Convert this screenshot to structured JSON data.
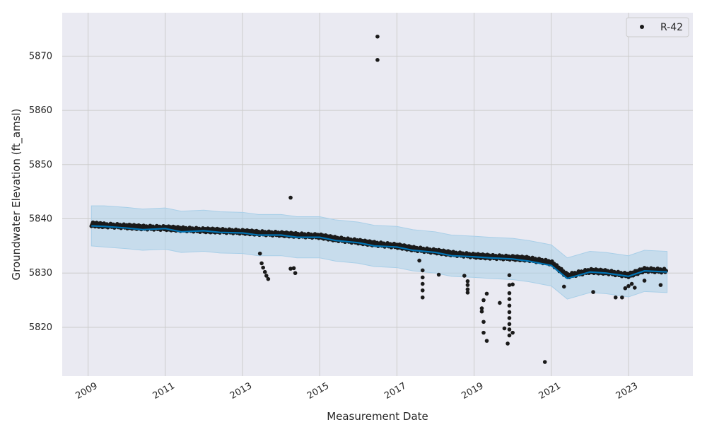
{
  "chart_data": {
    "type": "scatter",
    "title": "",
    "xlabel": "Measurement Date",
    "ylabel": "Groundwater Elevation (ft_amsl)",
    "x_ticks": [
      "2009",
      "2011",
      "2013",
      "2015",
      "2017",
      "2019",
      "2021",
      "2023"
    ],
    "y_ticks": [
      5820,
      5830,
      5840,
      5850,
      5860,
      5870
    ],
    "xlim": [
      "2008-05-01",
      "2024-09-01"
    ],
    "ylim": [
      5811,
      5878
    ],
    "grid": true,
    "legend": {
      "position": "top-right",
      "entries": [
        "R-42"
      ]
    },
    "colors": {
      "background": "#eaeaf2",
      "grid": "#cccccc",
      "observed": "#1a1a1a",
      "forecast_line": "#0072b2",
      "uncertainty_band": "#a9cfe8"
    },
    "series": [
      {
        "name": "R-42",
        "kind": "observed_points",
        "trend": {
          "x": [
            "2009-02-01",
            "2009-06-01",
            "2010-01-01",
            "2010-06-01",
            "2011-01-01",
            "2011-06-01",
            "2012-01-01",
            "2012-06-01",
            "2013-01-01",
            "2013-06-01",
            "2014-01-01",
            "2014-06-01",
            "2015-01-01",
            "2015-06-01",
            "2016-01-01",
            "2016-06-01",
            "2017-01-01",
            "2017-06-01",
            "2018-01-01",
            "2018-06-01",
            "2019-01-01",
            "2019-06-01",
            "2020-01-01",
            "2020-06-01",
            "2021-01-01",
            "2021-06-01",
            "2022-01-01",
            "2022-06-01",
            "2023-01-01",
            "2023-06-01",
            "2024-01-01"
          ],
          "y": [
            5839.0,
            5838.8,
            5838.6,
            5838.4,
            5838.3,
            5838.1,
            5837.9,
            5837.8,
            5837.6,
            5837.4,
            5837.2,
            5837.0,
            5836.8,
            5836.3,
            5835.8,
            5835.4,
            5835.0,
            5834.5,
            5834.0,
            5833.6,
            5833.2,
            5833.0,
            5832.8,
            5832.6,
            5831.9,
            5829.5,
            5830.4,
            5830.2,
            5829.6,
            5830.6,
            5830.4
          ]
        },
        "outliers": [
          [
            "2016-07-01",
            5873.6
          ],
          [
            "2016-07-01",
            5869.3
          ],
          [
            "2014-04-01",
            5843.9
          ],
          [
            "2013-06-15",
            5833.6
          ],
          [
            "2013-07-01",
            5831.8
          ],
          [
            "2013-07-15",
            5831.0
          ],
          [
            "2013-08-01",
            5830.2
          ],
          [
            "2013-08-15",
            5829.5
          ],
          [
            "2013-09-01",
            5828.9
          ],
          [
            "2014-04-01",
            5830.8
          ],
          [
            "2014-05-01",
            5830.9
          ],
          [
            "2014-05-15",
            5830.0
          ],
          [
            "2017-08-01",
            5832.3
          ],
          [
            "2017-09-01",
            5830.5
          ],
          [
            "2017-09-01",
            5829.2
          ],
          [
            "2017-09-01",
            5828.0
          ],
          [
            "2017-09-01",
            5826.8
          ],
          [
            "2017-09-01",
            5825.5
          ],
          [
            "2018-02-01",
            5829.7
          ],
          [
            "2018-10-01",
            5829.5
          ],
          [
            "2018-11-01",
            5828.5
          ],
          [
            "2018-11-01",
            5827.8
          ],
          [
            "2018-11-01",
            5827.0
          ],
          [
            "2018-11-01",
            5826.4
          ],
          [
            "2019-03-15",
            5823.5
          ],
          [
            "2019-03-15",
            5822.9
          ],
          [
            "2019-04-01",
            5825.0
          ],
          [
            "2019-04-01",
            5821.0
          ],
          [
            "2019-04-01",
            5819.0
          ],
          [
            "2019-05-01",
            5817.5
          ],
          [
            "2019-05-01",
            5826.2
          ],
          [
            "2019-09-01",
            5824.5
          ],
          [
            "2019-10-15",
            5819.8
          ],
          [
            "2019-11-15",
            5817.0
          ],
          [
            "2019-12-01",
            5829.6
          ],
          [
            "2019-12-01",
            5827.8
          ],
          [
            "2019-12-01",
            5826.3
          ],
          [
            "2019-12-01",
            5825.2
          ],
          [
            "2019-12-01",
            5824.0
          ],
          [
            "2019-12-01",
            5822.8
          ],
          [
            "2019-12-01",
            5821.7
          ],
          [
            "2019-12-01",
            5820.6
          ],
          [
            "2019-12-01",
            5819.6
          ],
          [
            "2019-12-01",
            5818.5
          ],
          [
            "2020-01-01",
            5819.0
          ],
          [
            "2020-01-01",
            5827.9
          ],
          [
            "2020-11-01",
            5813.6
          ],
          [
            "2021-05-01",
            5827.5
          ],
          [
            "2022-02-01",
            5826.5
          ],
          [
            "2022-09-01",
            5825.5
          ],
          [
            "2022-11-01",
            5825.5
          ],
          [
            "2022-12-01",
            5827.2
          ],
          [
            "2023-01-01",
            5827.6
          ],
          [
            "2023-02-01",
            5828.0
          ],
          [
            "2023-03-01",
            5827.3
          ],
          [
            "2023-06-01",
            5828.6
          ],
          [
            "2023-11-01",
            5827.8
          ]
        ]
      },
      {
        "kind": "forecast_line",
        "x": [
          "2009-02-01",
          "2009-06-01",
          "2010-01-01",
          "2010-06-01",
          "2011-01-01",
          "2011-06-01",
          "2012-01-01",
          "2012-06-01",
          "2013-01-01",
          "2013-06-01",
          "2014-01-01",
          "2014-06-01",
          "2015-01-01",
          "2015-06-01",
          "2016-01-01",
          "2016-06-01",
          "2017-01-01",
          "2017-06-01",
          "2018-01-01",
          "2018-06-01",
          "2019-01-01",
          "2019-06-01",
          "2020-01-01",
          "2020-06-01",
          "2021-01-01",
          "2021-06-01",
          "2022-01-01",
          "2022-06-01",
          "2023-01-01",
          "2023-06-01",
          "2024-01-01"
        ],
        "y": [
          5838.7,
          5838.6,
          5838.3,
          5838.0,
          5838.2,
          5837.6,
          5837.8,
          5837.5,
          5837.4,
          5837.0,
          5837.0,
          5836.6,
          5836.6,
          5836.0,
          5835.6,
          5835.0,
          5834.8,
          5834.2,
          5833.8,
          5833.2,
          5833.0,
          5832.8,
          5832.6,
          5832.2,
          5831.4,
          5829.0,
          5830.2,
          5830.0,
          5829.4,
          5830.4,
          5830.2
        ],
        "lower": [
          5835.0,
          5834.8,
          5834.5,
          5834.2,
          5834.4,
          5833.8,
          5834.0,
          5833.7,
          5833.6,
          5833.2,
          5833.2,
          5832.8,
          5832.8,
          5832.2,
          5831.8,
          5831.2,
          5831.0,
          5830.4,
          5830.0,
          5829.4,
          5829.2,
          5829.0,
          5828.8,
          5828.4,
          5827.6,
          5825.2,
          5826.4,
          5826.2,
          5825.6,
          5826.6,
          5826.4
        ],
        "upper": [
          5842.4,
          5842.4,
          5842.1,
          5841.8,
          5842.0,
          5841.4,
          5841.6,
          5841.3,
          5841.2,
          5840.8,
          5840.8,
          5840.4,
          5840.4,
          5839.8,
          5839.4,
          5838.8,
          5838.6,
          5838.0,
          5837.6,
          5837.0,
          5836.8,
          5836.6,
          5836.4,
          5836.0,
          5835.2,
          5832.8,
          5834.0,
          5833.8,
          5833.2,
          5834.2,
          5834.0
        ]
      }
    ]
  }
}
